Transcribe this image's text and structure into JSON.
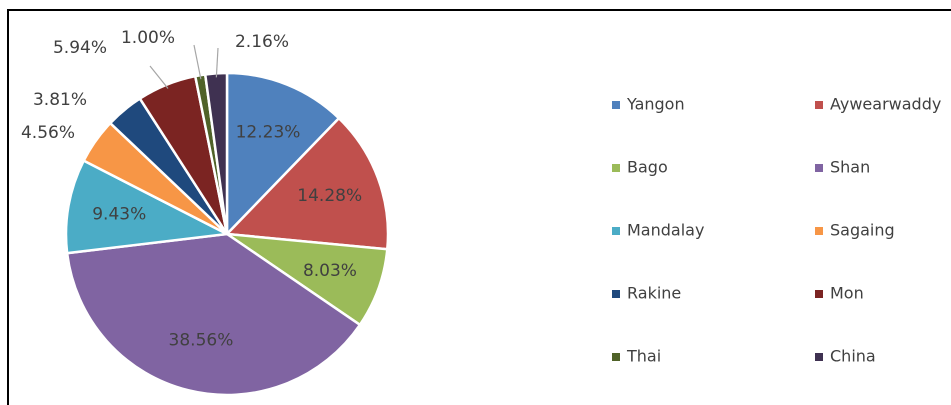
{
  "chart_data": {
    "type": "pie",
    "categories": [
      "Yangon",
      "Aywearwaddy",
      "Bago",
      "Shan",
      "Mandalay",
      "Sagaing",
      "Rakine",
      "Mon",
      "Thai",
      "China"
    ],
    "values": [
      12.23,
      14.28,
      8.03,
      38.56,
      9.43,
      4.56,
      3.81,
      5.94,
      1.0,
      2.16
    ],
    "value_labels": [
      "12.23%",
      "14.28%",
      "8.03%",
      "38.56%",
      "9.43%",
      "4.56%",
      "3.81%",
      "5.94%",
      "1.00%",
      "2.16%"
    ],
    "colors": [
      "#4f81bd",
      "#c0504d",
      "#9bbb59",
      "#8064a2",
      "#4bacc6",
      "#f79646",
      "#1f497d",
      "#7b2422",
      "#4f6228",
      "#3f3151"
    ],
    "legend": "right"
  }
}
